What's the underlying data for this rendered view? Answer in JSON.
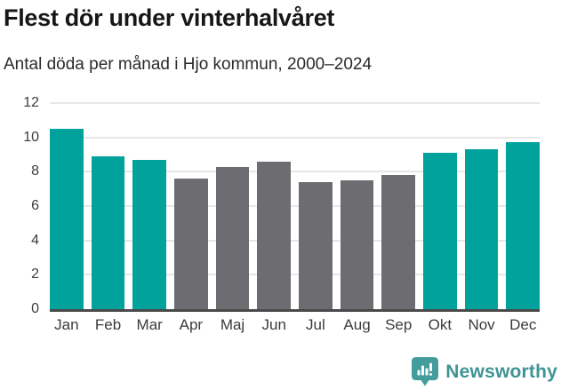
{
  "header": {
    "title": "Flest dör under vinterhalvåret",
    "subtitle": "Antal döda per månad i Hjo kommun, 2000–2024"
  },
  "chart_data": {
    "type": "bar",
    "title": "Flest dör under vinterhalvåret",
    "subtitle": "Antal döda per månad i Hjo kommun, 2000–2024",
    "categories": [
      "Jan",
      "Feb",
      "Mar",
      "Apr",
      "Maj",
      "Jun",
      "Jul",
      "Aug",
      "Sep",
      "Okt",
      "Nov",
      "Dec"
    ],
    "values": [
      10.5,
      8.9,
      8.7,
      7.6,
      8.3,
      8.6,
      7.4,
      7.5,
      7.8,
      9.1,
      9.3,
      9.7
    ],
    "bar_colors": [
      "teal",
      "teal",
      "teal",
      "gray",
      "gray",
      "gray",
      "gray",
      "gray",
      "gray",
      "teal",
      "teal",
      "teal"
    ],
    "xlabel": "",
    "ylabel": "",
    "yticks": [
      0,
      2,
      4,
      6,
      8,
      10,
      12
    ],
    "ylim": [
      0,
      12
    ],
    "grid": "horizontal",
    "legend": "none"
  },
  "colors": {
    "teal": "#00a29b",
    "gray": "#6d6c71",
    "gridline": "#e7e7e7",
    "axis_line": "#4a4a4a",
    "title_text": "#171717",
    "logo_teal": "#459c9d",
    "brand_text": "#3e9495"
  },
  "footer": {
    "brand": "Newsworthy"
  }
}
